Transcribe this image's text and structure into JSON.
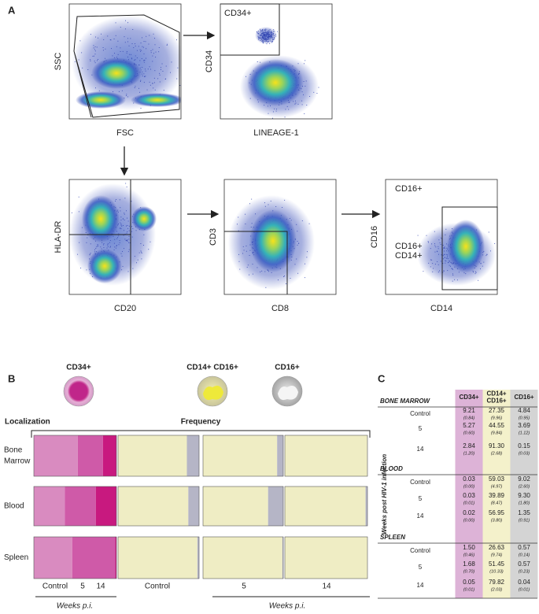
{
  "panel_labels": [
    "A",
    "B",
    "C"
  ],
  "flow": {
    "plots": [
      {
        "x_label": "FSC",
        "y_label": "SSC"
      },
      {
        "x_label": "LINEAGE-1",
        "y_label": "CD34",
        "gate_labels": [
          "CD34+"
        ]
      },
      {
        "x_label": "CD20",
        "y_label": "HLA-DR"
      },
      {
        "x_label": "CD8",
        "y_label": "CD3"
      },
      {
        "x_label": "CD14",
        "y_label": "CD16",
        "gate_labels": [
          "CD16+",
          "CD16+",
          "CD14+"
        ]
      }
    ]
  },
  "frequency": {
    "populations": [
      "CD34+",
      "CD14+ CD16+",
      "CD16+"
    ],
    "localization_title": "Localization",
    "frequency_title": "Frequency",
    "tissues": [
      [
        "Bone",
        "Marrow"
      ],
      [
        "Blood"
      ],
      [
        "Spleen"
      ]
    ],
    "timepoints": [
      "Control",
      "5",
      "14"
    ],
    "axis_label": "Weeks p.i."
  },
  "table": {
    "columns": [
      [
        "CD34+"
      ],
      [
        "CD14+",
        "CD16+"
      ],
      [
        "CD16+"
      ]
    ],
    "row_axis_label": "Weeks post HIV-1 infection",
    "sections": [
      {
        "name": "BONE MARROW",
        "rows": [
          {
            "label": "Control",
            "values": [
              "9.21",
              "27.35",
              "4.84"
            ],
            "sd": [
              "(0.84)",
              "(9.96)",
              "(0.95)"
            ]
          },
          {
            "label": "5",
            "values": [
              "5.27",
              "44.55",
              "3.69"
            ],
            "sd": [
              "(0.60)",
              "(9.84)",
              "(1.12)"
            ]
          },
          {
            "label": "14",
            "values": [
              "2.84",
              "91.30",
              "0.15"
            ],
            "sd": [
              "(1.20)",
              "(2.68)",
              "(0.03)"
            ]
          }
        ]
      },
      {
        "name": "BLOOD",
        "rows": [
          {
            "label": "Control",
            "values": [
              "0.03",
              "59.03",
              "9.02"
            ],
            "sd": [
              "(0.00)",
              "(4.97)",
              "(2.60)"
            ]
          },
          {
            "label": "5",
            "values": [
              "0.03",
              "39.89",
              "9.30"
            ],
            "sd": [
              "(0.01)",
              "(8.47)",
              "(1.80)"
            ]
          },
          {
            "label": "14",
            "values": [
              "0.02",
              "56.95",
              "1.35"
            ],
            "sd": [
              "(0.00)",
              "(3.80)",
              "(0.91)"
            ]
          }
        ]
      },
      {
        "name": "SPLEEN",
        "rows": [
          {
            "label": "Control",
            "values": [
              "1.50",
              "26.63",
              "0.57"
            ],
            "sd": [
              "(0.46)",
              "(9.74)",
              "(0.14)"
            ]
          },
          {
            "label": "5",
            "values": [
              "1.68",
              "51.45",
              "0.57"
            ],
            "sd": [
              "(0.70)",
              "(10.33)",
              "(0.23)"
            ]
          },
          {
            "label": "14",
            "values": [
              "0.05",
              "79.82",
              "0.04"
            ],
            "sd": [
              "(0.01)",
              "(2.03)",
              "(0.01)"
            ]
          }
        ]
      }
    ]
  }
}
